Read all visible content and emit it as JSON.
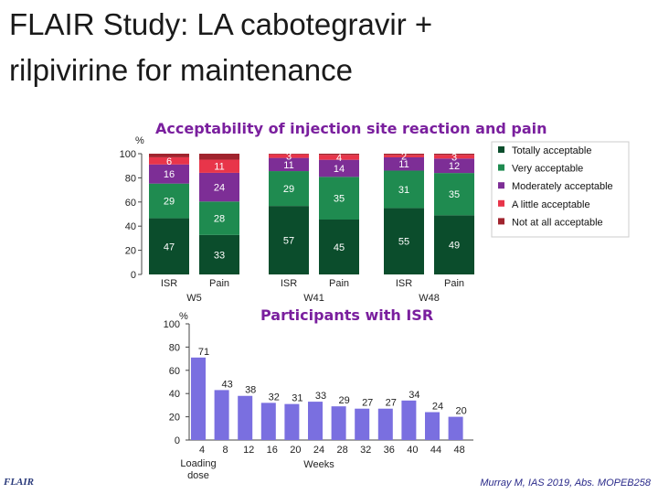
{
  "title_line1": "FLAIR Study: LA cabotegravir +",
  "title_line2": "rilpivirine for maintenance",
  "footer_logo": "FLAIR",
  "citation": "Murray M, IAS 2019, Abs. MOPEB258",
  "colors": {
    "totally": "#0b4d2c",
    "very": "#1f8b50",
    "moderately": "#7d2e96",
    "little": "#e8354a",
    "not_at_all": "#a0242e",
    "lower_bars": "#7a6fe0"
  },
  "chart_data": [
    {
      "type": "bar",
      "stacked": true,
      "title": "Acceptability of injection site reaction and pain",
      "ylabel": "%",
      "ylim": [
        0,
        100
      ],
      "yticks": [
        0,
        20,
        40,
        60,
        80,
        100
      ],
      "categories": [
        "ISR",
        "Pain",
        "ISR",
        "Pain",
        "ISR",
        "Pain"
      ],
      "groups": [
        "W5",
        "W41",
        "W48"
      ],
      "series": [
        {
          "name": "Totally acceptable",
          "values": [
            47,
            33,
            57,
            45,
            55,
            49
          ],
          "labels": [
            "47",
            "33",
            "57",
            "45",
            "55",
            "49"
          ]
        },
        {
          "name": "Very acceptable",
          "values": [
            29,
            28,
            29,
            35,
            31,
            35
          ],
          "labels": [
            "29",
            "28",
            "29",
            "35",
            "31",
            "35"
          ]
        },
        {
          "name": "Moderately acceptable",
          "values": [
            16,
            24,
            11,
            14,
            11,
            12
          ],
          "labels": [
            "16",
            "24",
            "11",
            "14",
            "11",
            "12"
          ]
        },
        {
          "name": "A little acceptable",
          "values": [
            6,
            11,
            3,
            4,
            2,
            3
          ],
          "labels": [
            "6",
            "11",
            "3",
            "4",
            "2",
            "3"
          ]
        },
        {
          "name": "Not at all acceptable",
          "values": [
            3,
            5,
            0.5,
            1,
            1,
            1
          ],
          "labels": [
            "3",
            "5",
            "< 1",
            "1",
            "1",
            "1"
          ]
        }
      ],
      "legend_position": "right"
    },
    {
      "type": "bar",
      "title": "Participants with ISR",
      "ylabel": "%",
      "ylim": [
        0,
        100
      ],
      "yticks": [
        0,
        20,
        40,
        60,
        80,
        100
      ],
      "xlabel": "Weeks",
      "x_sublabel_line1": "Loading",
      "x_sublabel_line2": "dose",
      "xticks": [
        "4",
        "8",
        "12",
        "16",
        "20",
        "24",
        "28",
        "32",
        "36",
        "40",
        "44",
        "48"
      ],
      "bars": [
        {
          "label": "71",
          "value": 71
        },
        {
          "label": "43",
          "value": 43
        },
        {
          "label": "38",
          "value": 38
        },
        {
          "label": "32",
          "value": 32
        },
        {
          "label": "31",
          "value": 31
        },
        {
          "label": "33",
          "value": 33
        },
        {
          "label": "29",
          "value": 29
        },
        {
          "label": "27",
          "value": 27
        },
        {
          "label": "27",
          "value": 27
        },
        {
          "label": "34",
          "value": 34
        },
        {
          "label": "24",
          "value": 24
        },
        {
          "label": "20",
          "value": 20
        }
      ]
    }
  ]
}
